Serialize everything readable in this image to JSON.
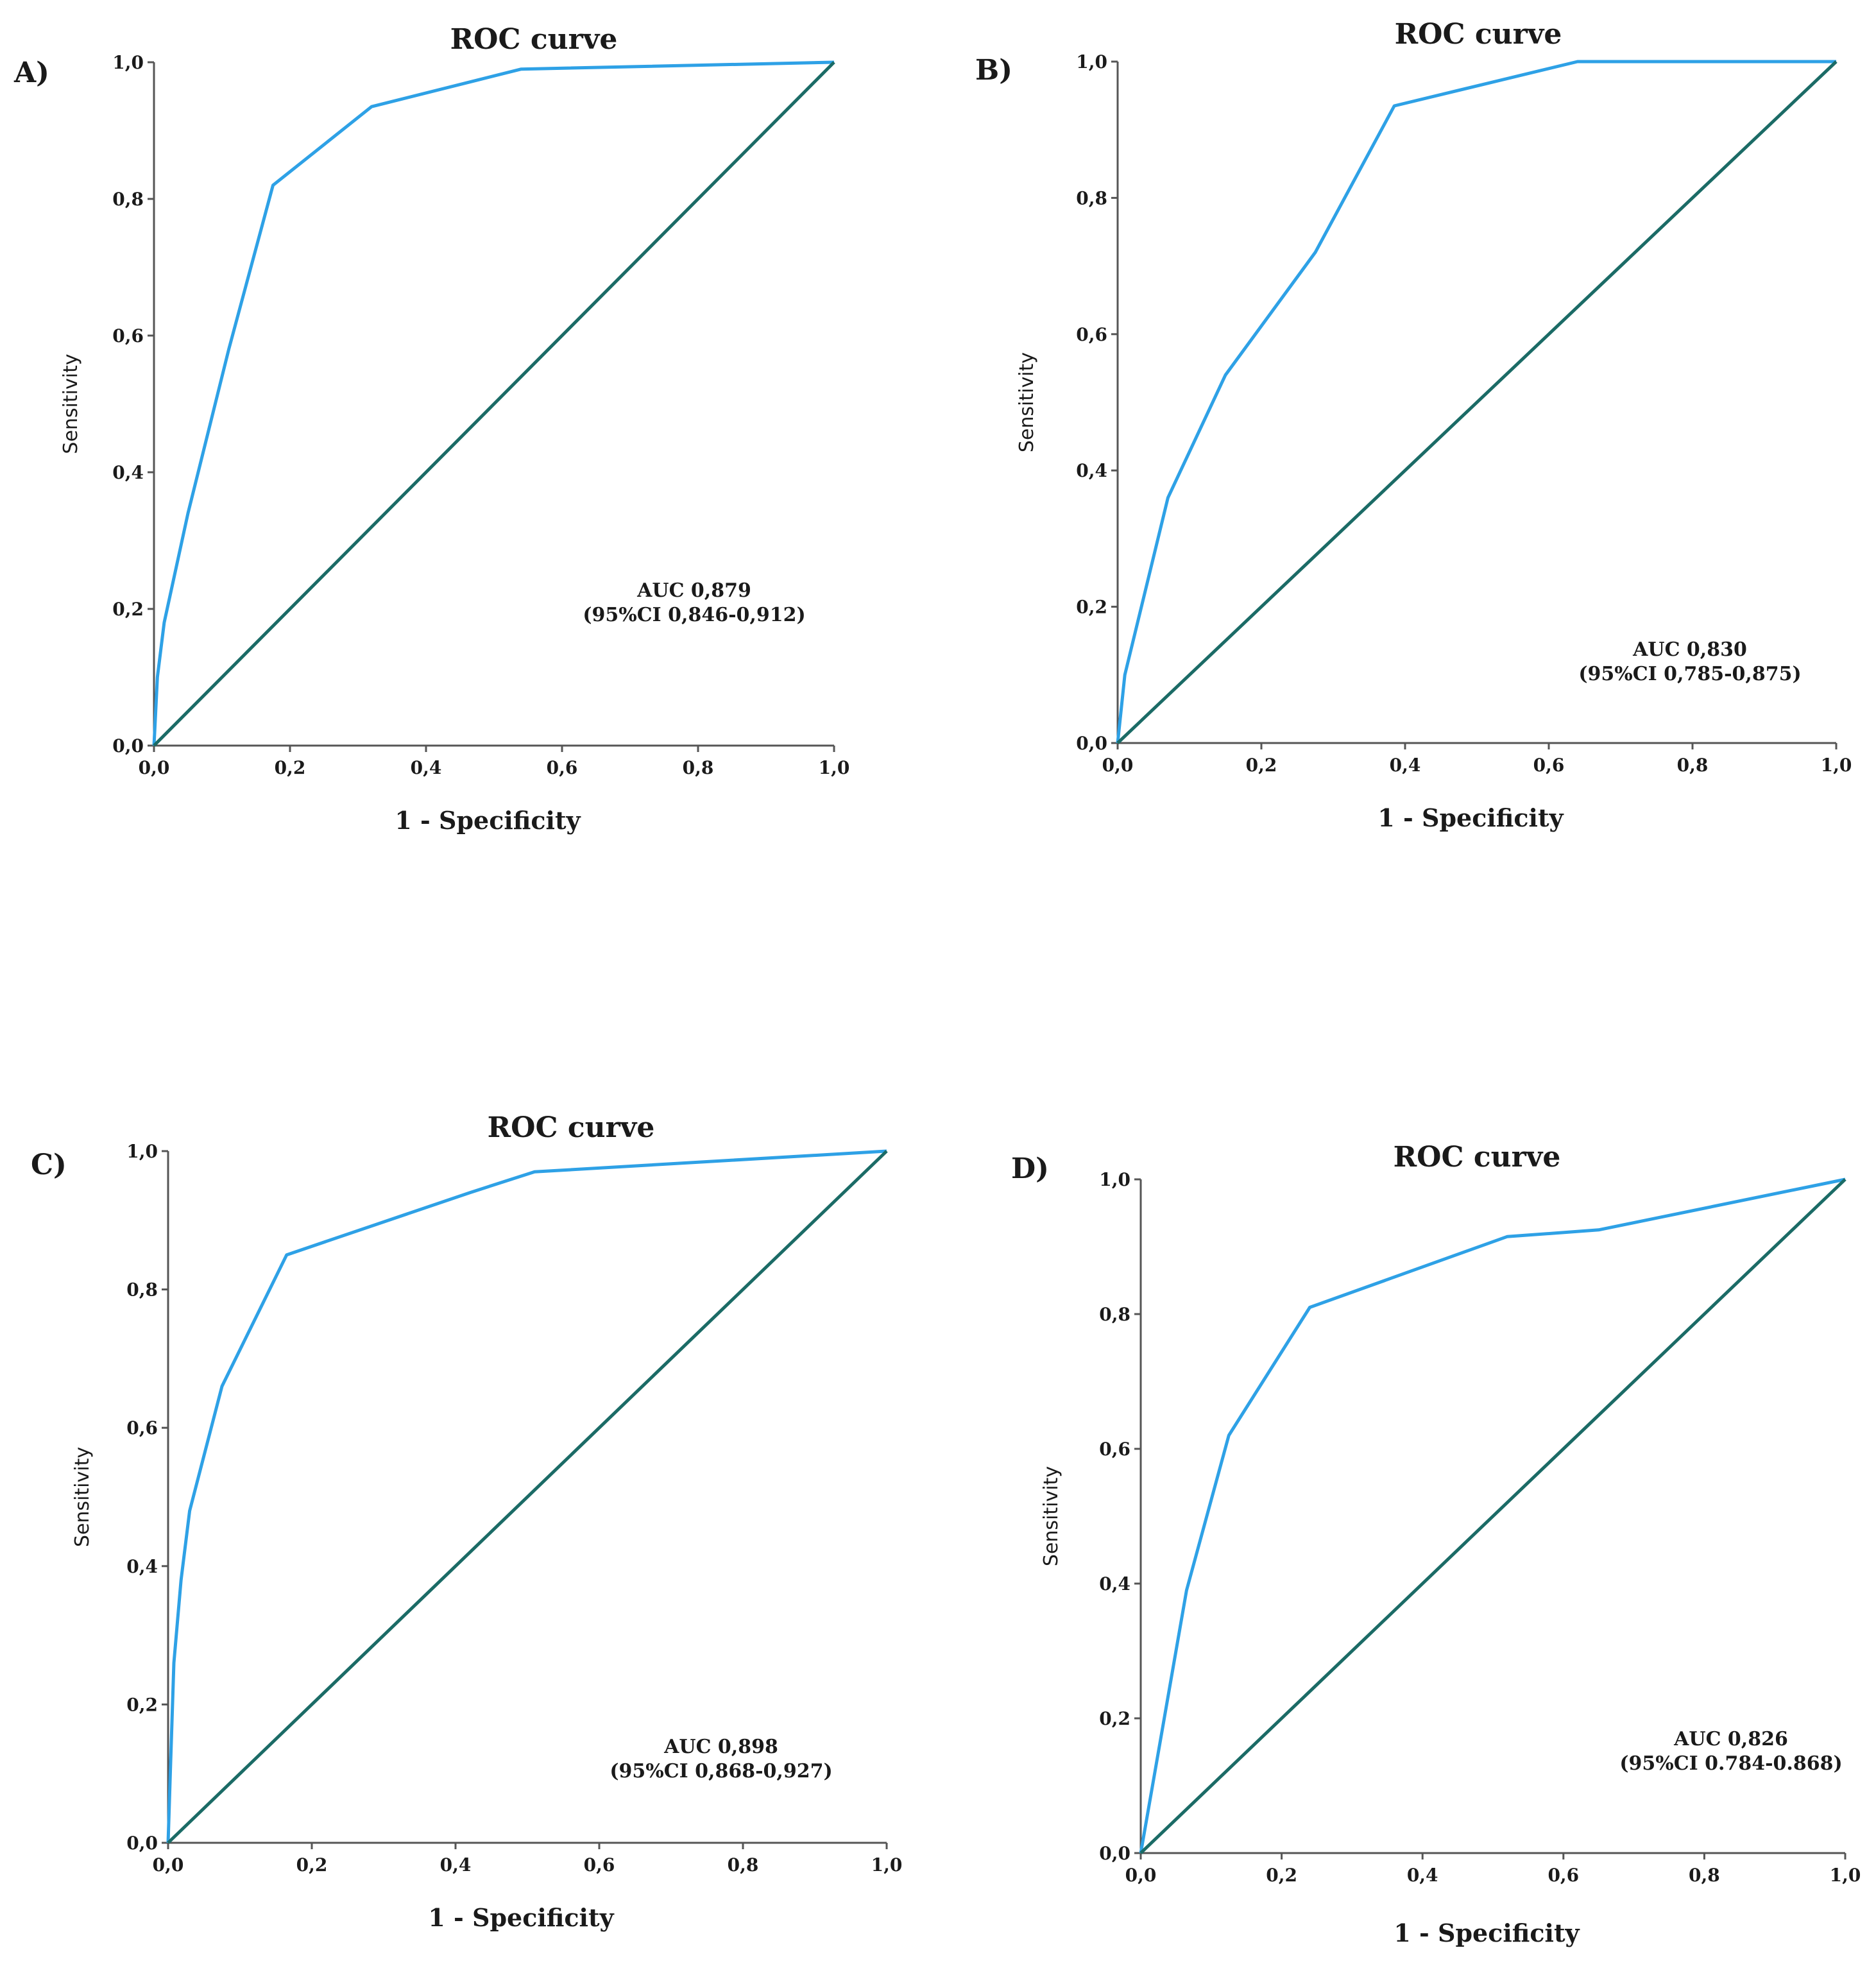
{
  "colors": {
    "roc_curve": "#2ea1e6",
    "reference_line": "#1b6b66",
    "axis": "#555555"
  },
  "chart_data": [
    {
      "type": "line",
      "panel_label": "A)",
      "title": "ROC curve",
      "xlabel": "1 - Specificity",
      "ylabel": "Sensitivity",
      "xlim": [
        0,
        1
      ],
      "ylim": [
        0,
        1
      ],
      "grid": false,
      "x_tick_labels": [
        "0,0",
        "0,2",
        "0,4",
        "0,6",
        "0,8",
        "1,0"
      ],
      "y_tick_labels": [
        "0,0",
        "0,2",
        "0,4",
        "0,6",
        "0,8",
        "1,0"
      ],
      "series": [
        {
          "name": "ROC",
          "x": [
            0,
            0.005,
            0.015,
            0.05,
            0.11,
            0.175,
            0.32,
            0.54,
            1.0
          ],
          "y": [
            0,
            0.1,
            0.18,
            0.34,
            0.58,
            0.82,
            0.935,
            0.99,
            1.0
          ]
        },
        {
          "name": "Reference",
          "x": [
            0,
            1
          ],
          "y": [
            0,
            1
          ]
        }
      ],
      "annotation": {
        "line1": "AUC 0,879",
        "line2": "(95%CI 0,846-0,912)"
      }
    },
    {
      "type": "line",
      "panel_label": "B)",
      "title": "ROC curve",
      "xlabel": "1 - Specificity",
      "ylabel": "Sensitivity",
      "xlim": [
        0,
        1
      ],
      "ylim": [
        0,
        1
      ],
      "grid": false,
      "x_tick_labels": [
        "0,0",
        "0,2",
        "0,4",
        "0,6",
        "0,8",
        "1,0"
      ],
      "y_tick_labels": [
        "0,0",
        "0,2",
        "0,4",
        "0,6",
        "0,8",
        "1,0"
      ],
      "series": [
        {
          "name": "ROC",
          "x": [
            0,
            0.01,
            0.07,
            0.15,
            0.275,
            0.385,
            0.64,
            1.0
          ],
          "y": [
            0,
            0.1,
            0.36,
            0.54,
            0.72,
            0.935,
            1.0,
            1.0
          ]
        },
        {
          "name": "Reference",
          "x": [
            0,
            1
          ],
          "y": [
            0,
            1
          ]
        }
      ],
      "annotation": {
        "line1": "AUC 0,830",
        "line2": "(95%CI 0,785-0,875)"
      }
    },
    {
      "type": "line",
      "panel_label": "C)",
      "title": "ROC curve",
      "xlabel": "1 - Specificity",
      "ylabel": "Sensitivity",
      "xlim": [
        0,
        1
      ],
      "ylim": [
        0,
        1
      ],
      "grid": false,
      "x_tick_labels": [
        "0,0",
        "0,2",
        "0,4",
        "0,6",
        "0,8",
        "1,0"
      ],
      "y_tick_labels": [
        "0,0",
        "0,2",
        "0,4",
        "0,6",
        "0,8",
        "1,0"
      ],
      "series": [
        {
          "name": "ROC",
          "x": [
            0,
            0.003,
            0.008,
            0.018,
            0.03,
            0.075,
            0.165,
            0.42,
            0.51,
            1.0
          ],
          "y": [
            0,
            0.1,
            0.26,
            0.38,
            0.48,
            0.66,
            0.85,
            0.94,
            0.97,
            1.0
          ]
        },
        {
          "name": "Reference",
          "x": [
            0,
            1
          ],
          "y": [
            0,
            1
          ]
        }
      ],
      "annotation": {
        "line1": "AUC 0,898",
        "line2": "(95%CI 0,868-0,927)"
      }
    },
    {
      "type": "line",
      "panel_label": "D)",
      "title": "ROC curve",
      "xlabel": "1 - Specificity",
      "ylabel": "Sensitivity",
      "xlim": [
        0,
        1
      ],
      "ylim": [
        0,
        1
      ],
      "grid": false,
      "x_tick_labels": [
        "0,0",
        "0,2",
        "0,4",
        "0,6",
        "0,8",
        "1,0"
      ],
      "y_tick_labels": [
        "0,0",
        "0,2",
        "0,4",
        "0,6",
        "0,8",
        "1,0"
      ],
      "series": [
        {
          "name": "ROC",
          "x": [
            0,
            0.02,
            0.065,
            0.125,
            0.24,
            0.52,
            0.65,
            1.0
          ],
          "y": [
            0,
            0.12,
            0.39,
            0.62,
            0.81,
            0.915,
            0.925,
            1.0
          ]
        },
        {
          "name": "Reference",
          "x": [
            0,
            1
          ],
          "y": [
            0,
            1
          ]
        }
      ],
      "annotation": {
        "line1": "AUC 0,826",
        "line2": "(95%CI 0.784-0.868)"
      }
    }
  ]
}
